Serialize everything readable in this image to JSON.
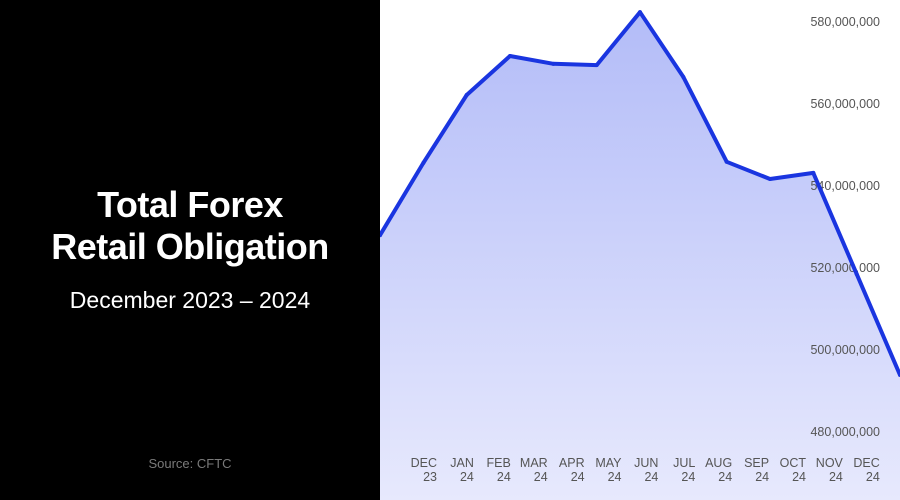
{
  "left_panel": {
    "title_line1": "Total Forex",
    "title_line2": "Retail Obligation",
    "subtitle": "December 2023 – 2024",
    "source": "Source: CFTC"
  },
  "chart_data": {
    "type": "area",
    "title": "Total Forex Retail Obligation",
    "subtitle": "December 2023 – 2024",
    "xlabel": "",
    "ylabel": "",
    "categories": [
      [
        "DEC",
        "23"
      ],
      [
        "JAN",
        "24"
      ],
      [
        "FEB",
        "24"
      ],
      [
        "MAR",
        "24"
      ],
      [
        "APR",
        "24"
      ],
      [
        "MAY",
        "24"
      ],
      [
        "JUN",
        "24"
      ],
      [
        "JUL",
        "24"
      ],
      [
        "AUG",
        "24"
      ],
      [
        "SEP",
        "24"
      ],
      [
        "OCT",
        "24"
      ],
      [
        "NOV",
        "24"
      ],
      [
        "DEC",
        "24"
      ]
    ],
    "values": [
      528000000,
      545600000,
      562200000,
      571700000,
      569800000,
      569500000,
      582400000,
      566600000,
      545900000,
      541700000,
      543200000,
      518500000,
      493900000
    ],
    "y_ticks": [
      "580,000,000",
      "560,000,000",
      "540,000,000",
      "520,000,000",
      "500,000,000",
      "480,000,000"
    ],
    "y_tick_values": [
      580000000,
      560000000,
      540000000,
      520000000,
      500000000,
      480000000
    ],
    "grid": false,
    "y_axis_side": "right",
    "colors": {
      "line": "#1a35e0",
      "fill_top": "#b3bcf8",
      "fill_bottom": "#e7e9fd",
      "panel": "#000000"
    }
  }
}
